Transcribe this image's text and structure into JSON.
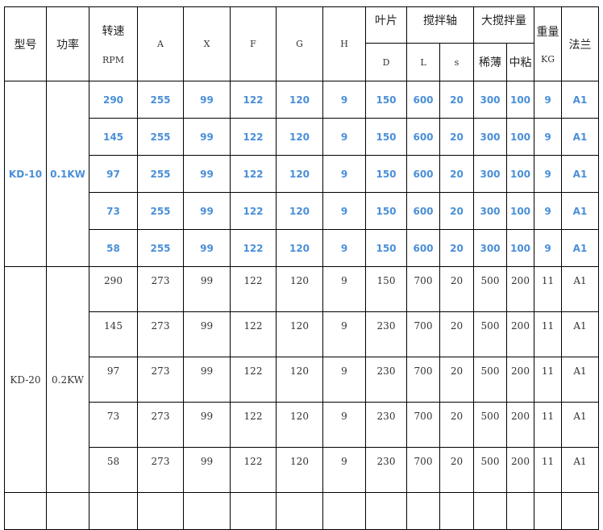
{
  "header": {
    "model": "型号",
    "power": "功率",
    "speed": "转速",
    "speed_unit": "RPM",
    "A": "A",
    "X": "X",
    "F": "F",
    "G": "G",
    "H": "H",
    "blade": "叶片",
    "blade_D": "D",
    "shaft": "搅拌轴",
    "shaft_L": "L",
    "shaft_s": "s",
    "capacity": "大搅拌量",
    "cap_thin": "稀薄",
    "cap_mid": "中粘",
    "weight": "重量",
    "weight_unit": "KG",
    "flange": "法兰"
  },
  "groups": [
    {
      "model": "KD-10",
      "power": "0.1KW",
      "highlight_color": "#4a8fd8",
      "rows": [
        [
          "290",
          "255",
          "99",
          "122",
          "120",
          "9",
          "150",
          "600",
          "20",
          "300",
          "100",
          "9",
          "A1"
        ],
        [
          "145",
          "255",
          "99",
          "122",
          "120",
          "9",
          "150",
          "600",
          "20",
          "300",
          "100",
          "9",
          "A1"
        ],
        [
          "97",
          "255",
          "99",
          "122",
          "120",
          "9",
          "150",
          "600",
          "20",
          "300",
          "100",
          "9",
          "A1"
        ],
        [
          "73",
          "255",
          "99",
          "122",
          "120",
          "9",
          "150",
          "600",
          "20",
          "300",
          "100",
          "9",
          "A1"
        ],
        [
          "58",
          "255",
          "99",
          "122",
          "120",
          "9",
          "150",
          "600",
          "20",
          "300",
          "100",
          "9",
          "A1"
        ]
      ]
    },
    {
      "model": "KD-20",
      "power": "0.2KW",
      "rows": [
        [
          "290",
          "273",
          "99",
          "122",
          "120",
          "9",
          "150",
          "700",
          "20",
          "500",
          "200",
          "11",
          "A1"
        ],
        [
          "145",
          "273",
          "99",
          "122",
          "120",
          "9",
          "230",
          "700",
          "20",
          "500",
          "200",
          "11",
          "A1"
        ],
        [
          "97",
          "273",
          "99",
          "122",
          "120",
          "9",
          "230",
          "700",
          "20",
          "500",
          "200",
          "11",
          "A1"
        ],
        [
          "73",
          "273",
          "99",
          "122",
          "120",
          "9",
          "230",
          "700",
          "20",
          "500",
          "200",
          "11",
          "A1"
        ],
        [
          "58",
          "273",
          "99",
          "122",
          "120",
          "9",
          "230",
          "700",
          "20",
          "500",
          "200",
          "11",
          "A1"
        ]
      ]
    }
  ]
}
